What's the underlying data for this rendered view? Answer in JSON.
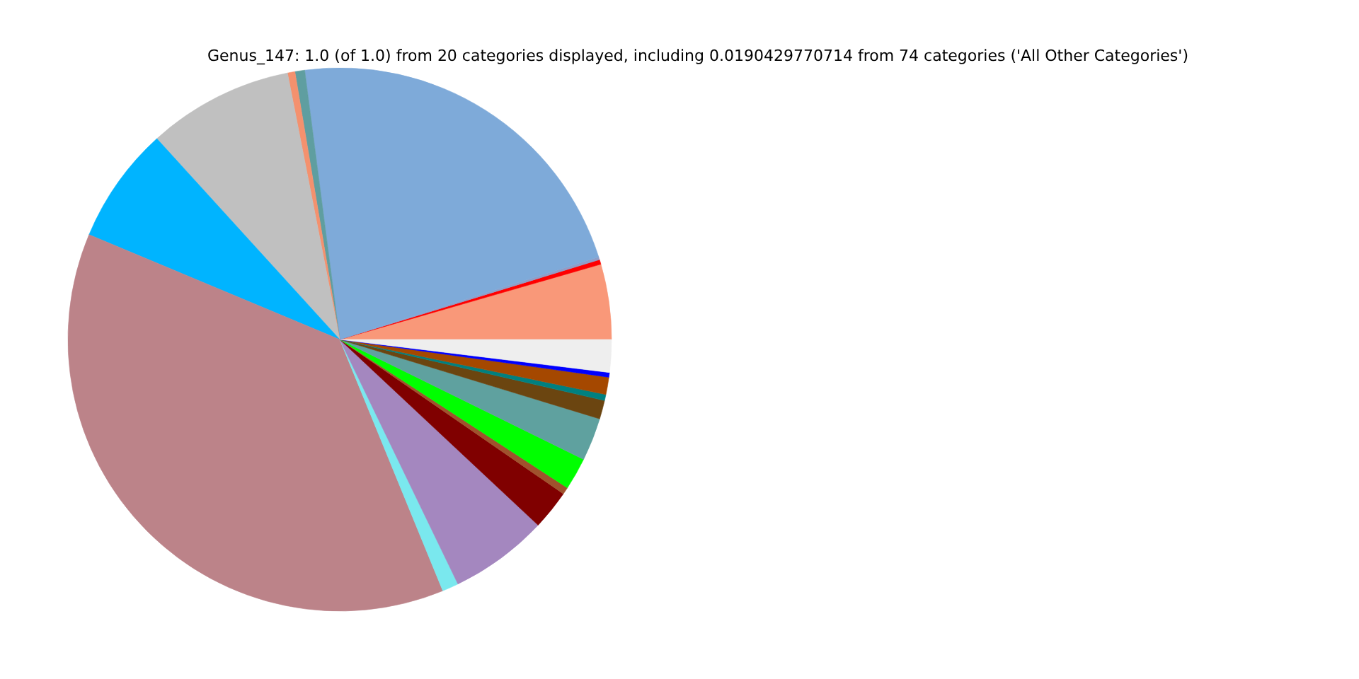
{
  "chart_data": {
    "type": "pie",
    "title": "Genus_147: 1.0 (of 1.0) from 20 categories displayed, including 0.0190429770714 from 74 categories ('All Other Categories')",
    "categories": [
      null,
      null,
      null,
      null,
      null,
      null,
      null,
      null,
      null,
      null,
      null,
      null,
      null,
      null,
      null,
      null,
      null,
      null,
      null,
      null
    ],
    "values": [
      4.47,
      0.28,
      0.17,
      22.14,
      0.58,
      0.44,
      8.67,
      6.94,
      37.5,
      0.97,
      5.86,
      2.36,
      0.42,
      1.92,
      2.56,
      1.11,
      0.36,
      1.03,
      0.28,
      1.94
    ],
    "colors": [
      "#f99879",
      "#ff0000",
      "#8f9ec8",
      "#7eaad9",
      "#5f9ea0",
      "#f4916e",
      "#c0c0c0",
      "#00b4ff",
      "#bc8389",
      "#7ae8ee",
      "#a487bf",
      "#800000",
      "#a0522d",
      "#00ff00",
      "#5fa19f",
      "#6b4510",
      "#008080",
      "#a54800",
      "#0000ff",
      "#eeeeee"
    ]
  }
}
